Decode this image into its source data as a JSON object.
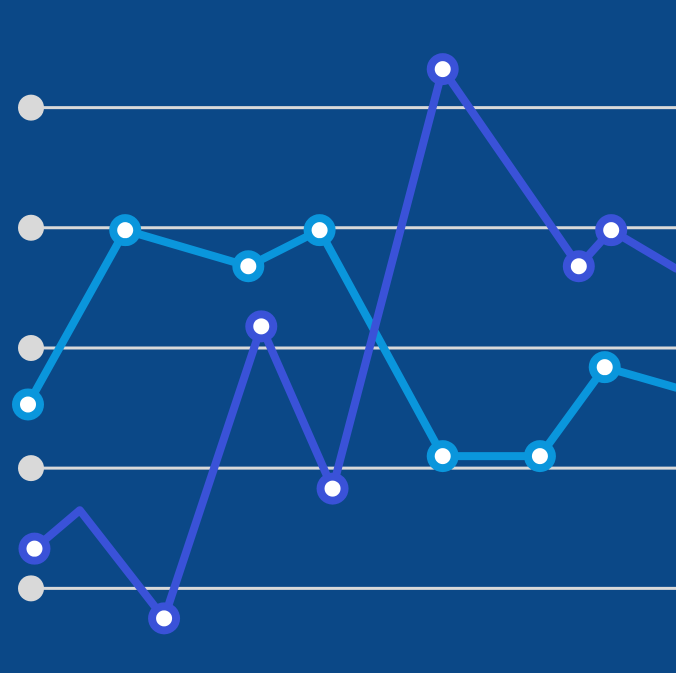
{
  "colors": {
    "background": "#0B4887",
    "gridline": "#D9D9D9",
    "axis_marker": "#D9D9D9",
    "point_fill": "#FFFFFF"
  },
  "chart_data": {
    "type": "line",
    "title": "",
    "xlabel": "",
    "ylabel": "",
    "x": [
      0.0,
      0.15,
      0.21,
      0.34,
      0.36,
      0.45,
      0.47,
      0.64,
      0.79,
      0.85,
      0.9,
      1.0
    ],
    "ylim": [
      0,
      5.5
    ],
    "yticks": [
      1,
      2,
      3,
      4,
      5
    ],
    "grid": true,
    "legend": "none",
    "series": [
      {
        "color": "#0A96DC",
        "points": [
          [
            0.0,
            2.53
          ],
          [
            0.15,
            3.98
          ],
          [
            0.34,
            3.68
          ],
          [
            0.45,
            3.98
          ],
          [
            0.64,
            2.1
          ],
          [
            0.79,
            2.1
          ],
          [
            0.89,
            2.84
          ],
          [
            1.0,
            2.67
          ]
        ],
        "markers": [
          true,
          true,
          true,
          true,
          true,
          true,
          true,
          false
        ]
      },
      {
        "color": "#3A52D8",
        "points": [
          [
            0.01,
            1.33
          ],
          [
            0.08,
            1.65
          ],
          [
            0.21,
            0.75
          ],
          [
            0.36,
            3.18
          ],
          [
            0.47,
            1.83
          ],
          [
            0.64,
            5.32
          ],
          [
            0.85,
            3.68
          ],
          [
            0.9,
            3.98
          ],
          [
            1.0,
            3.66
          ]
        ],
        "markers": [
          true,
          false,
          true,
          true,
          true,
          true,
          true,
          true,
          false
        ]
      }
    ]
  }
}
